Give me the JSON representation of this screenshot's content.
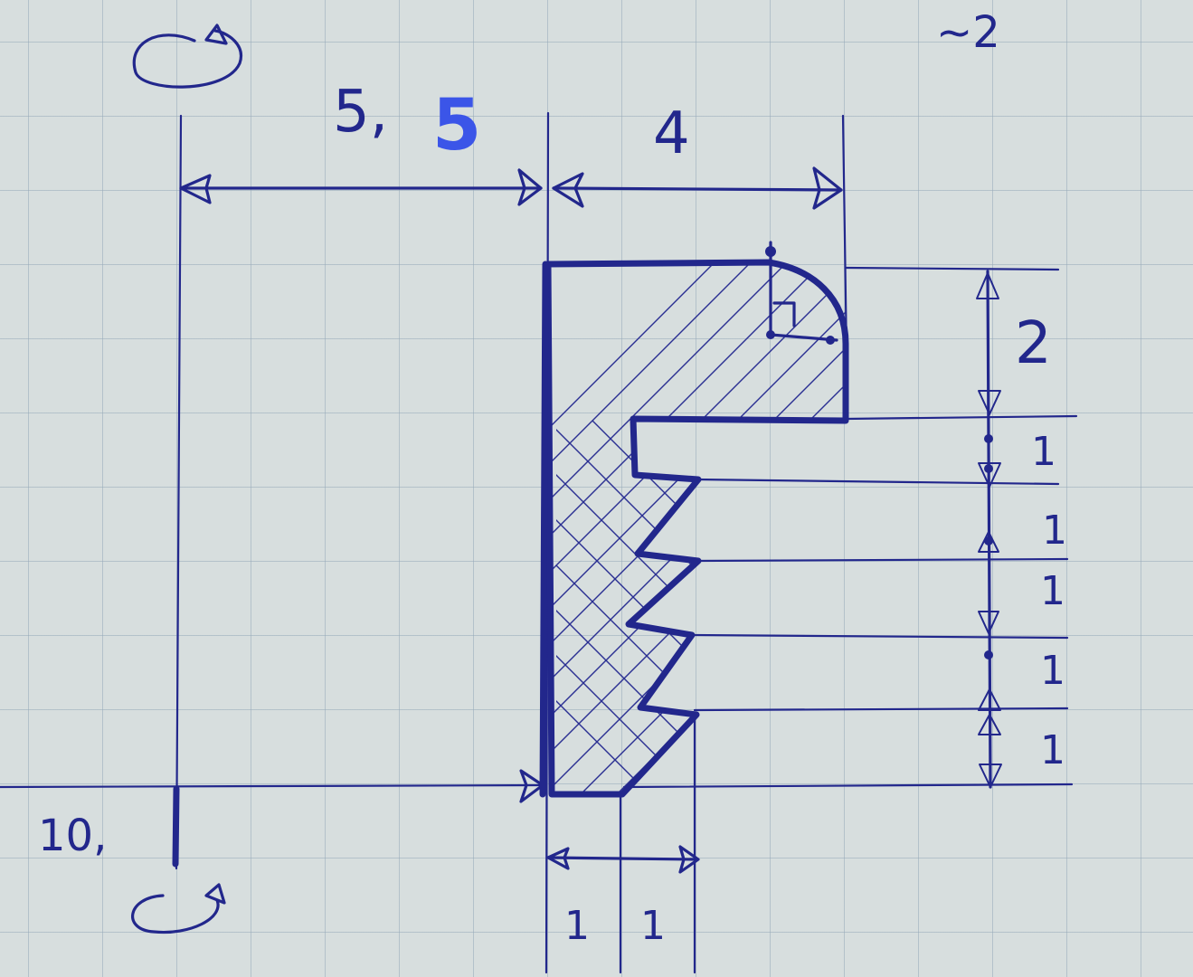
{
  "labels": {
    "note_top_right": "~2",
    "axis_distance_prefix": "5,",
    "axis_distance_suffix": "5",
    "width_top": "4",
    "height_2": "2",
    "height_1a": "1",
    "height_1b": "1",
    "height_1c": "1",
    "height_1d": "1",
    "height_1e": "1",
    "bottom_left_value": "10,",
    "bottom_width_1a": "1",
    "bottom_width_1b": "1"
  },
  "colors": {
    "ink": "#22278c",
    "correction_ink": "#3b55e8",
    "paper": "#d7dede"
  }
}
